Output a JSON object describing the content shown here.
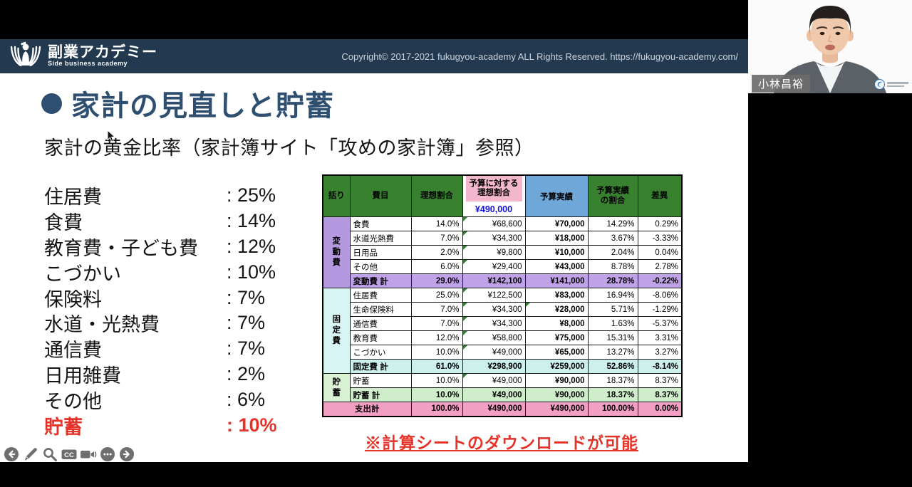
{
  "header": {
    "brand": {
      "name": "副業アカデミー",
      "tagline": "Side business academy"
    },
    "copyright": "Copyright© 2017-2021 fukugyou-academy ALL Rights Reserved. https://fukugyou-academy.com/"
  },
  "slide": {
    "title": "家計の見直しと貯蓄",
    "subtitle": "家計の黄金比率（家計簿サイト「攻めの家計簿」参照）",
    "note": "※計算シートのダウンロードが可能",
    "ratios": [
      {
        "label": "住居費",
        "value": ": 25%"
      },
      {
        "label": "食費",
        "value": ": 14%"
      },
      {
        "label": "教育費・子ども費",
        "value": ": 12%"
      },
      {
        "label": "こづかい",
        "value": ": 10%"
      },
      {
        "label": "保険料",
        "value": ": 7%"
      },
      {
        "label": "水道・光熱費",
        "value": ": 7%"
      },
      {
        "label": "通信費",
        "value": ": 7%"
      },
      {
        "label": "日用雑費",
        "value": ": 2%"
      },
      {
        "label": "その他",
        "value": ": 6%"
      },
      {
        "label": "貯蓄",
        "value": ": 10%",
        "highlight": true
      }
    ]
  },
  "table": {
    "headers": [
      "括り",
      "費目",
      "理想割合",
      "予算に対する\n理想割合",
      "予算実績",
      "予算実績\nの割合",
      "差異"
    ],
    "budget_total": "¥490,000",
    "groups": [
      {
        "label": "変動費",
        "start": 0,
        "span": 5,
        "style": "purple"
      },
      {
        "label": "固定費",
        "start": 5,
        "span": 6,
        "style": "cyan"
      },
      {
        "label": "貯蓄",
        "start": 11,
        "span": 2,
        "style": "green"
      }
    ],
    "rows": [
      {
        "type": "item",
        "label": "食費",
        "values": [
          "14.0%",
          "¥68,600",
          "¥70,000",
          "14.29%",
          "0.29%"
        ]
      },
      {
        "type": "item",
        "label": "水道光熱費",
        "values": [
          "7.0%",
          "¥34,300",
          "¥18,000",
          "3.67%",
          "-3.33%"
        ]
      },
      {
        "type": "item",
        "label": "日用品",
        "values": [
          "2.0%",
          "¥9,800",
          "¥10,000",
          "2.04%",
          "0.04%"
        ]
      },
      {
        "type": "item",
        "label": "その他",
        "values": [
          "6.0%",
          "¥29,400",
          "¥43,000",
          "8.78%",
          "2.78%"
        ]
      },
      {
        "type": "subtotal",
        "style": "purple",
        "label": "変動費 計",
        "values": [
          "29.0%",
          "¥142,100",
          "¥141,000",
          "28.78%",
          "-0.22%"
        ]
      },
      {
        "type": "item",
        "label": "住居費",
        "values": [
          "25.0%",
          "¥122,500",
          "¥83,000",
          "16.94%",
          "-8.06%"
        ]
      },
      {
        "type": "item",
        "label": "生命保険料",
        "values": [
          "7.0%",
          "¥34,300",
          "¥28,000",
          "5.71%",
          "-1.29%"
        ],
        "marker_actual": true
      },
      {
        "type": "item",
        "label": "通信費",
        "values": [
          "7.0%",
          "¥34,300",
          "¥8,000",
          "1.63%",
          "-5.37%"
        ]
      },
      {
        "type": "item",
        "label": "教育費",
        "values": [
          "12.0%",
          "¥58,800",
          "¥75,000",
          "15.31%",
          "3.31%"
        ]
      },
      {
        "type": "item",
        "label": "こづかい",
        "values": [
          "10.0%",
          "¥49,000",
          "¥65,000",
          "13.27%",
          "3.27%"
        ]
      },
      {
        "type": "subtotal",
        "style": "cyan",
        "label": "固定費 計",
        "values": [
          "61.0%",
          "¥298,900",
          "¥259,000",
          "52.86%",
          "-8.14%"
        ]
      },
      {
        "type": "item",
        "label": "貯蓄",
        "values": [
          "10.0%",
          "¥49,000",
          "¥90,000",
          "18.37%",
          "8.37%"
        ]
      },
      {
        "type": "subtotal",
        "style": "green",
        "label": "貯蓄 計",
        "values": [
          "10.0%",
          "¥49,000",
          "¥90,000",
          "18.37%",
          "8.37%"
        ]
      },
      {
        "type": "total",
        "style": "pink",
        "label": "支出計",
        "values": [
          "100.0%",
          "¥490,000",
          "¥490,000",
          "100.00%",
          "0.00%"
        ]
      }
    ]
  },
  "video": {
    "name_tag": "小林昌裕"
  },
  "controls": [
    {
      "icon": "back-arrow"
    },
    {
      "icon": "pen"
    },
    {
      "icon": "search"
    },
    {
      "icon": "closed-captions",
      "label": "CC"
    },
    {
      "icon": "video-camera"
    },
    {
      "icon": "more-dots"
    },
    {
      "icon": "forward-arrow"
    }
  ],
  "colors": {
    "accent_red": "#e5332a",
    "title_blue": "#2f4f71",
    "band_navy": "#22394f",
    "header_green": "#37812f",
    "header_pink": "#f2b6cd",
    "header_blue": "#6fa7d8",
    "value_blue": "#1414d2",
    "group_purple": "#b499e0",
    "subtotal_purple": "#bfa2e8",
    "group_cyan": "#d7f5f2",
    "group_green": "#d9f2d4",
    "total_pink": "#f19fc2"
  }
}
